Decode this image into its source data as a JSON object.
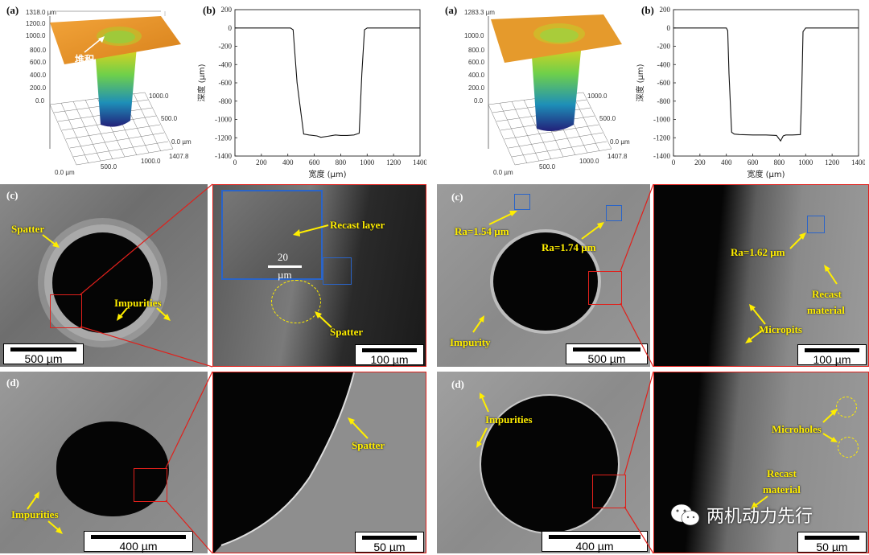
{
  "panel_tags": {
    "a": "(a)",
    "b": "(b)",
    "c": "(c)",
    "d": "(d)"
  },
  "profile_left": {
    "z_top": "1318.0 µm",
    "z_ticks": [
      "1200.0",
      "1000.0",
      "800.0",
      "600.0",
      "400.0",
      "200.0",
      "0.0"
    ],
    "annotation": "堆积",
    "y_ticks": [
      "1000.0",
      "500.0",
      "0.0 µm"
    ],
    "y_max": "1407.8",
    "x_ticks": [
      "0.0 µm",
      "500.0",
      "1000.0"
    ]
  },
  "profile_right": {
    "z_top": "1283.3 µm",
    "z_ticks": [
      "1000.0",
      "800.0",
      "600.0",
      "400.0",
      "200.0",
      "0.0"
    ],
    "y_ticks": [
      "1000.0",
      "500.0",
      "0.0 µm"
    ],
    "y_max": "1407.8",
    "x_ticks": [
      "0.0 µm",
      "500.0",
      "1000.0"
    ]
  },
  "chart_data": [
    {
      "type": "line",
      "xlabel": "宽度 (µm)",
      "ylabel": "深度 (µm)",
      "xlim": [
        0,
        1400
      ],
      "ylim": [
        -1400,
        200
      ],
      "x_ticks": [
        0,
        200,
        400,
        600,
        800,
        1000,
        1200,
        1400
      ],
      "y_ticks": [
        200,
        0,
        -200,
        -400,
        -600,
        -800,
        -1000,
        -1200,
        -1400
      ],
      "x": [
        0,
        420,
        440,
        470,
        520,
        560,
        620,
        650,
        700,
        760,
        800,
        850,
        900,
        940,
        960,
        980,
        1000,
        1400
      ],
      "y": [
        0,
        0,
        -20,
        -600,
        -1160,
        -1170,
        -1180,
        -1195,
        -1185,
        -1170,
        -1175,
        -1175,
        -1170,
        -1150,
        -500,
        -20,
        0,
        0
      ]
    },
    {
      "type": "line",
      "xlabel": "宽度 (µm)",
      "ylabel": "深度 (µm)",
      "xlim": [
        0,
        1400
      ],
      "ylim": [
        -1400,
        200
      ],
      "x_ticks": [
        0,
        200,
        400,
        600,
        800,
        1000,
        1200,
        1400
      ],
      "y_ticks": [
        200,
        0,
        -200,
        -400,
        -600,
        -800,
        -1000,
        -1200,
        -1400
      ],
      "x": [
        0,
        400,
        410,
        420,
        440,
        460,
        500,
        600,
        700,
        780,
        810,
        830,
        850,
        900,
        960,
        970,
        980,
        1000,
        1400
      ],
      "y": [
        0,
        0,
        -30,
        -500,
        -1140,
        -1160,
        -1165,
        -1170,
        -1170,
        -1175,
        -1235,
        -1180,
        -1170,
        -1170,
        -1165,
        -700,
        -40,
        0,
        0
      ]
    }
  ],
  "sem_left_c": {
    "spatter": "Spatter",
    "impurities": "Impurities",
    "scale": "500 µm",
    "zoom_recast": "Recast layer",
    "zoom_inset_scale_1": "20",
    "zoom_inset_scale_2": "µm",
    "zoom_spatter": "Spatter",
    "zoom_scale": "100 µm"
  },
  "sem_left_d": {
    "impurities": "Impurities",
    "scale": "400 µm",
    "zoom_spatter": "Spatter",
    "zoom_scale": "50 µm"
  },
  "sem_right_c": {
    "ra1": "Ra=1.54 µm",
    "ra2": "Ra=1.74 µm",
    "impurity": "Impurity",
    "scale": "500 µm",
    "zoom_ra": "Ra=1.62 µm",
    "zoom_recast_1": "Recast",
    "zoom_recast_2": "material",
    "zoom_micropits": "Micropits",
    "zoom_scale": "100 µm"
  },
  "sem_right_d": {
    "impurities": "Impurities",
    "scale": "400 µm",
    "zoom_microholes": "Microholes",
    "zoom_recast_1": "Recast",
    "zoom_recast_2": "material",
    "zoom_scale": "50 µm"
  },
  "watermark": "两机动力先行",
  "colors": {
    "label_yellow": "#ffee00",
    "zoom_red": "#e0201b",
    "roi_blue": "#2a64c8"
  }
}
